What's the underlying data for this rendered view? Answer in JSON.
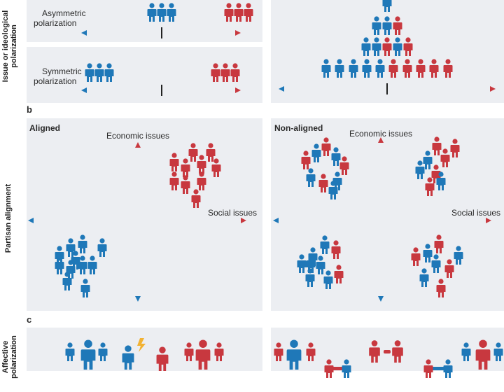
{
  "section_labels": {
    "b": "b",
    "c": "c"
  },
  "side_labels": {
    "issue_line1": "Issue or ideological",
    "issue_line2": "polarization",
    "partisan": "Partisan alignment",
    "affective_line1": "Affective",
    "affective_line2": "polarization"
  },
  "panel_a": {
    "asymmetric_line1": "Asymmetric",
    "asymmetric_line2": "polarization",
    "symmetric_line1": "Symmetric",
    "symmetric_line2": "polarization"
  },
  "panel_b": {
    "aligned_title": "Aligned",
    "nonaligned_title": "Non-aligned",
    "y_axis_label": "Economic issues",
    "x_axis_label": "Social issues"
  },
  "colors": {
    "blue": "#1f78b8",
    "red": "#c8383f",
    "panel_bg": "#eceef2",
    "axis": "#333333"
  },
  "icons": [
    "person-icon",
    "conflict-spark-icon",
    "handshake-icon"
  ]
}
